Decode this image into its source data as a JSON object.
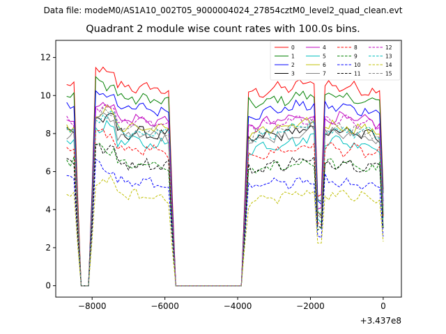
{
  "chart_data": {
    "type": "line",
    "suptitle": "Data file: modeM0/AS1A10_002T05_9000004024_27854cztM0_level2_quad_clean.evt",
    "title": "Quadrant 2 module wise count rates with 100.0s bins.",
    "xlabel": "",
    "ylabel": "",
    "x_offset_label": "+3.437e8",
    "xlim": [
      -9000,
      500
    ],
    "ylim": [
      -0.6,
      12.9
    ],
    "xticks": [
      -8000,
      -6000,
      -4000,
      -2000,
      0
    ],
    "xtick_labels": [
      "−8000",
      "−6000",
      "−4000",
      "−2000",
      "0"
    ],
    "yticks": [
      0,
      2,
      4,
      6,
      8,
      10,
      12
    ],
    "ytick_labels": [
      "0",
      "2",
      "4",
      "6",
      "8",
      "10",
      "12"
    ],
    "legend_position": "top-right",
    "segments": [
      [
        -8700,
        -8400
      ],
      [
        -8000,
        -7400
      ],
      [
        -5800,
        -3800
      ],
      [
        -3700,
        -1800
      ],
      [
        -1700,
        0
      ]
    ],
    "series": [
      {
        "name": "0",
        "color": "#ff0000",
        "style": "solid",
        "base": 10.5
      },
      {
        "name": "1",
        "color": "#008000",
        "style": "solid",
        "base": 9.9
      },
      {
        "name": "2",
        "color": "#0000ff",
        "style": "solid",
        "base": 9.4
      },
      {
        "name": "3",
        "color": "#000000",
        "style": "solid",
        "base": 8.1
      },
      {
        "name": "4",
        "color": "#bf00bf",
        "style": "solid",
        "base": 8.8
      },
      {
        "name": "5",
        "color": "#00bfbf",
        "style": "solid",
        "base": 7.6
      },
      {
        "name": "6",
        "color": "#bfbf00",
        "style": "solid",
        "base": 8.4
      },
      {
        "name": "7",
        "color": "#808080",
        "style": "solid",
        "base": 8.0
      },
      {
        "name": "8",
        "color": "#ff0000",
        "style": "dashed",
        "base": 7.2
      },
      {
        "name": "9",
        "color": "#008000",
        "style": "dashed",
        "base": 6.4
      },
      {
        "name": "10",
        "color": "#0000ff",
        "style": "dashed",
        "base": 5.5
      },
      {
        "name": "11",
        "color": "#000000",
        "style": "dashed",
        "base": 6.5
      },
      {
        "name": "12",
        "color": "#bf00bf",
        "style": "dashed",
        "base": 8.7
      },
      {
        "name": "13",
        "color": "#00bfbf",
        "style": "dashed",
        "base": 8.2
      },
      {
        "name": "14",
        "color": "#bfbf00",
        "style": "dashed",
        "base": 4.8
      },
      {
        "name": "15",
        "color": "#808080",
        "style": "dashed",
        "base": 8.3
      }
    ]
  }
}
